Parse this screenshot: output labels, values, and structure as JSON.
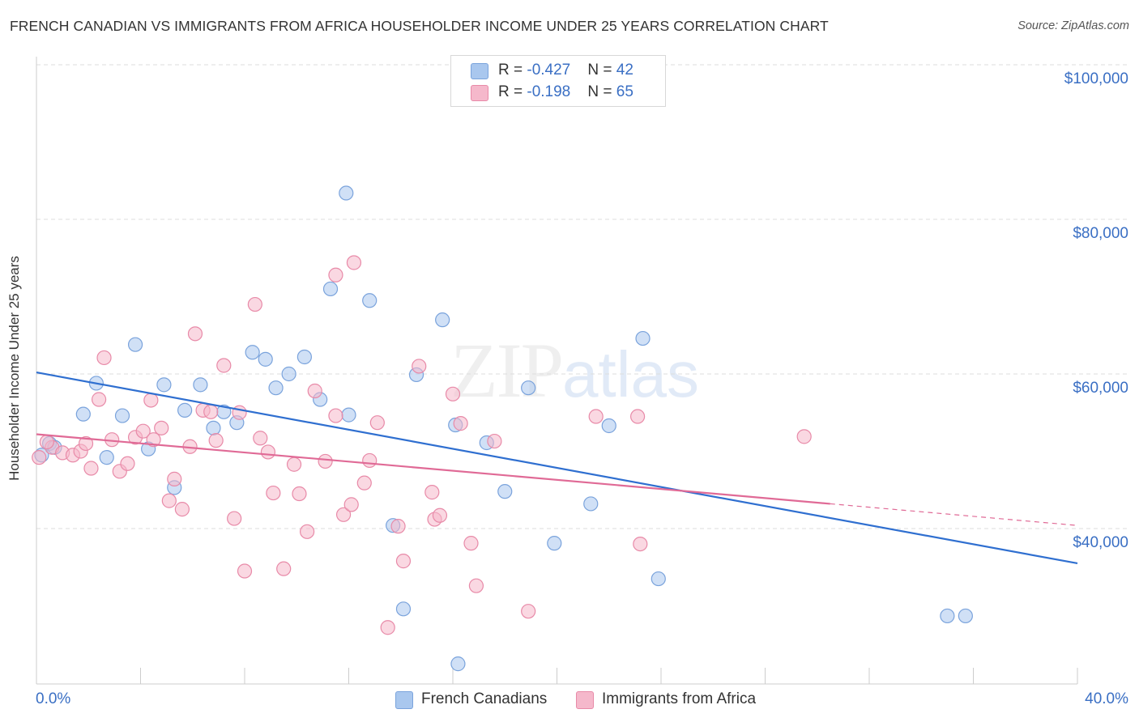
{
  "title": "FRENCH CANADIAN VS IMMIGRANTS FROM AFRICA HOUSEHOLDER INCOME UNDER 25 YEARS CORRELATION CHART",
  "source": "Source: ZipAtlas.com",
  "watermark": {
    "zip": "ZIP",
    "atlas": "atlas"
  },
  "legend_stats": [
    {
      "r_label": "R = ",
      "r_value": "-0.427",
      "n_label": "N = ",
      "n_value": "42"
    },
    {
      "r_label": "R = ",
      "r_value": "-0.198",
      "n_label": "N = ",
      "n_value": "65"
    }
  ],
  "chart_data": {
    "type": "scatter",
    "title": "FRENCH CANADIAN VS IMMIGRANTS FROM AFRICA HOUSEHOLDER INCOME UNDER 25 YEARS CORRELATION CHART",
    "xlabel": "",
    "ylabel": "Householder Income Under 25 years",
    "xlim": [
      0,
      40
    ],
    "ylim": [
      20000,
      102000
    ],
    "x_tick_labels": [
      "0.0%",
      "40.0%"
    ],
    "y_ticks": [
      40000,
      60000,
      80000,
      100000
    ],
    "y_tick_labels": [
      "$40,000",
      "$60,000",
      "$80,000",
      "$100,000"
    ],
    "grid": true,
    "legend_position": "bottom",
    "series": [
      {
        "name": "French Canadians",
        "color": "#a9c7ee",
        "stroke": "#7aa3dc",
        "trend_color": "#2f6fd0",
        "trend": {
          "x0": 0,
          "y0": 60200,
          "x1": 40,
          "y1": 35500,
          "solid_to": 40
        },
        "points": [
          [
            0.2,
            49500
          ],
          [
            0.5,
            51000
          ],
          [
            0.7,
            50500
          ],
          [
            1.8,
            54800
          ],
          [
            2.3,
            58800
          ],
          [
            2.7,
            49200
          ],
          [
            3.3,
            54600
          ],
          [
            3.8,
            63800
          ],
          [
            4.3,
            50300
          ],
          [
            4.9,
            58600
          ],
          [
            5.3,
            45300
          ],
          [
            5.7,
            55300
          ],
          [
            6.3,
            58600
          ],
          [
            6.8,
            53000
          ],
          [
            7.2,
            55100
          ],
          [
            7.7,
            53700
          ],
          [
            8.3,
            62800
          ],
          [
            8.8,
            61900
          ],
          [
            9.2,
            58200
          ],
          [
            9.7,
            60000
          ],
          [
            10.3,
            62200
          ],
          [
            10.9,
            56700
          ],
          [
            11.3,
            71000
          ],
          [
            12.0,
            54700
          ],
          [
            11.9,
            83400
          ],
          [
            12.8,
            69500
          ],
          [
            13.7,
            40400
          ],
          [
            14.1,
            29600
          ],
          [
            14.6,
            59900
          ],
          [
            15.6,
            67000
          ],
          [
            16.1,
            53400
          ],
          [
            16.2,
            22500
          ],
          [
            17.3,
            51100
          ],
          [
            18.0,
            44800
          ],
          [
            18.9,
            58200
          ],
          [
            19.9,
            38100
          ],
          [
            21.3,
            43200
          ],
          [
            22.0,
            53300
          ],
          [
            23.3,
            64600
          ],
          [
            23.9,
            33500
          ],
          [
            35.0,
            28700
          ],
          [
            35.7,
            28700
          ]
        ]
      },
      {
        "name": "Immigrants from Africa",
        "color": "#f5b8cb",
        "stroke": "#e88aa8",
        "trend_color": "#e06a96",
        "trend": {
          "x0": 0,
          "y0": 52200,
          "x1": 40,
          "y1": 40400,
          "solid_to": 30.5
        },
        "points": [
          [
            0.1,
            49200
          ],
          [
            0.6,
            50500
          ],
          [
            1.0,
            49800
          ],
          [
            1.4,
            49500
          ],
          [
            1.7,
            50000
          ],
          [
            1.9,
            51000
          ],
          [
            2.1,
            47800
          ],
          [
            2.4,
            56700
          ],
          [
            2.6,
            62100
          ],
          [
            2.9,
            51500
          ],
          [
            3.2,
            47400
          ],
          [
            3.5,
            48400
          ],
          [
            3.8,
            51800
          ],
          [
            4.1,
            52600
          ],
          [
            4.4,
            56600
          ],
          [
            4.5,
            51500
          ],
          [
            4.8,
            53000
          ],
          [
            5.1,
            43600
          ],
          [
            5.3,
            46400
          ],
          [
            5.6,
            42500
          ],
          [
            5.9,
            50600
          ],
          [
            6.1,
            65200
          ],
          [
            6.4,
            55300
          ],
          [
            6.7,
            55100
          ],
          [
            6.9,
            51400
          ],
          [
            7.2,
            61100
          ],
          [
            7.6,
            41300
          ],
          [
            7.8,
            55000
          ],
          [
            8.0,
            34500
          ],
          [
            8.4,
            69000
          ],
          [
            8.6,
            51700
          ],
          [
            8.9,
            49900
          ],
          [
            9.1,
            44600
          ],
          [
            9.5,
            34800
          ],
          [
            9.9,
            48300
          ],
          [
            10.1,
            44500
          ],
          [
            10.4,
            39600
          ],
          [
            10.7,
            57800
          ],
          [
            11.1,
            48700
          ],
          [
            11.5,
            54600
          ],
          [
            11.5,
            72800
          ],
          [
            11.8,
            41800
          ],
          [
            12.1,
            43100
          ],
          [
            12.2,
            74400
          ],
          [
            12.6,
            45900
          ],
          [
            12.8,
            48800
          ],
          [
            13.1,
            53700
          ],
          [
            13.5,
            27200
          ],
          [
            13.9,
            40300
          ],
          [
            14.1,
            35800
          ],
          [
            14.7,
            61000
          ],
          [
            15.2,
            44700
          ],
          [
            15.3,
            41200
          ],
          [
            15.5,
            41700
          ],
          [
            16.0,
            57400
          ],
          [
            16.3,
            53600
          ],
          [
            16.7,
            38100
          ],
          [
            16.9,
            32600
          ],
          [
            17.6,
            51300
          ],
          [
            18.9,
            29300
          ],
          [
            21.5,
            54500
          ],
          [
            23.1,
            54500
          ],
          [
            23.2,
            38000
          ],
          [
            29.5,
            51900
          ],
          [
            0.4,
            51200
          ]
        ]
      }
    ]
  }
}
